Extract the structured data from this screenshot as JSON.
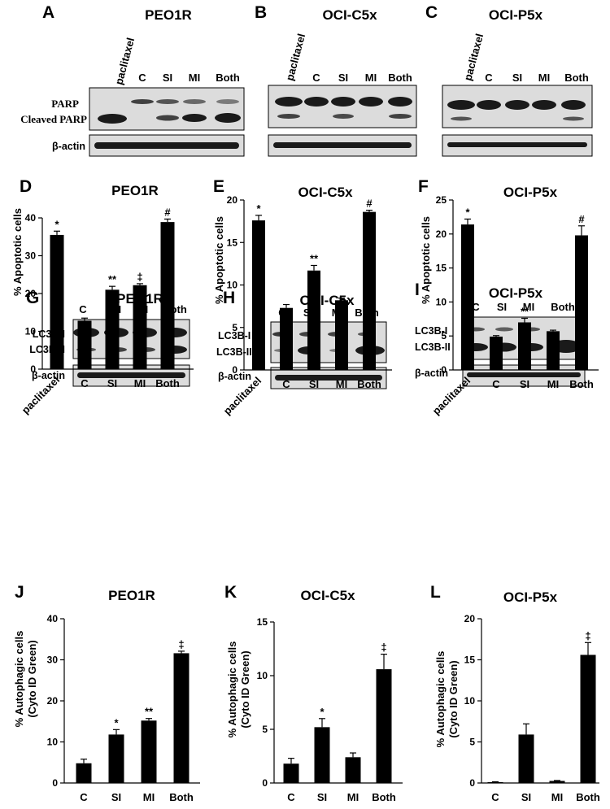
{
  "colors": {
    "bar": "#000000",
    "blot_bg": "#dcdcdc",
    "band": "#1a1a1a",
    "axis": "#000000"
  },
  "row1": {
    "panels": [
      {
        "letter": "A",
        "title": "PEO1R",
        "lanes": [
          "paclitaxel",
          "C",
          "SI",
          "MI",
          "Both"
        ],
        "band_labels": [
          "PARP",
          "Cleaved PARP"
        ],
        "loading_label": "β-actin"
      },
      {
        "letter": "B",
        "title": "OCI-C5x",
        "lanes": [
          "paclitaxel",
          "C",
          "SI",
          "MI",
          "Both"
        ],
        "loading_label": ""
      },
      {
        "letter": "C",
        "title": "OCI-P5x",
        "lanes": [
          "paclitaxel",
          "C",
          "SI",
          "MI",
          "Both"
        ],
        "loading_label": ""
      }
    ]
  },
  "row3": {
    "panels": [
      {
        "letter": "G",
        "title": "PEO1R",
        "lanes": [
          "C",
          "SI",
          "MI",
          "Both"
        ],
        "band_labels": [
          "LC3B-I",
          "LC3B-II"
        ],
        "loading_label": "β-actin"
      },
      {
        "letter": "H",
        "title": "OCI-C5x",
        "lanes": [
          "C",
          "SI",
          "MI",
          "Both"
        ],
        "band_labels": [
          "LC3B-I",
          "LC3B-II"
        ],
        "loading_label": "β-actin"
      },
      {
        "letter": "I",
        "title": "OCI-P5x",
        "lanes": [
          "C",
          "SI",
          "MI",
          "Both"
        ],
        "band_labels": [
          "LC3B-I",
          "LC3B-II"
        ],
        "loading_label": "β-actin"
      }
    ]
  },
  "chart_data": [
    {
      "letter": "D",
      "type": "bar",
      "title": "PEO1R",
      "ylabel": "% Apoptotic cells",
      "categories": [
        "paclitaxel",
        "C",
        "SI",
        "MI",
        "Both"
      ],
      "values": [
        35.5,
        12.8,
        21.0,
        22.2,
        38.9
      ],
      "errors": [
        1.0,
        0.7,
        0.9,
        0.4,
        0.8
      ],
      "significance": [
        "*",
        "",
        "**",
        "‡",
        "#"
      ],
      "ylim": [
        0,
        40
      ],
      "yticks": [
        "0",
        "10",
        "20",
        "30",
        "40"
      ]
    },
    {
      "letter": "E",
      "type": "bar",
      "title": "OCI-C5x",
      "ylabel": "% Apoptotic cells",
      "categories": [
        "paclitaxel",
        "C",
        "SI",
        "MI",
        "Both"
      ],
      "values": [
        17.6,
        7.3,
        11.7,
        8.2,
        18.6
      ],
      "errors": [
        0.6,
        0.4,
        0.6,
        0.25,
        0.2
      ],
      "significance": [
        "*",
        "",
        "**",
        "",
        "#"
      ],
      "ylim": [
        0,
        20
      ],
      "yticks": [
        "0",
        "5",
        "10",
        "15",
        "20"
      ]
    },
    {
      "letter": "F",
      "type": "bar",
      "title": "OCI-P5x",
      "ylabel": "% Apoptotic cells",
      "categories": [
        "paclitaxel",
        "C",
        "SI",
        "MI",
        "Both"
      ],
      "values": [
        21.4,
        4.9,
        7.0,
        5.7,
        19.8
      ],
      "errors": [
        0.8,
        0.15,
        0.6,
        0.15,
        1.4
      ],
      "significance": [
        "*",
        "",
        "**",
        "",
        "#"
      ],
      "ylim": [
        0,
        25
      ],
      "yticks": [
        "0",
        "5",
        "10",
        "15",
        "20",
        "25"
      ]
    },
    {
      "letter": "J",
      "type": "bar",
      "title": "PEO1R",
      "ylabel": "% Autophagic cells",
      "ylabel2": "(Cyto ID Green)",
      "categories": [
        "C",
        "SI",
        "MI",
        "Both"
      ],
      "values": [
        4.8,
        11.8,
        15.2,
        31.6
      ],
      "errors": [
        1.0,
        1.2,
        0.5,
        0.5
      ],
      "significance": [
        "",
        "*",
        "**",
        "‡"
      ],
      "ylim": [
        0,
        40
      ],
      "yticks": [
        "0",
        "10",
        "20",
        "30",
        "40"
      ]
    },
    {
      "letter": "K",
      "type": "bar",
      "title": "OCI-C5x",
      "ylabel": "% Autophagic cells",
      "ylabel2": "(Cyto ID Green)",
      "categories": [
        "C",
        "SI",
        "MI",
        "Both"
      ],
      "values": [
        1.8,
        5.2,
        2.4,
        10.6
      ],
      "errors": [
        0.5,
        0.8,
        0.4,
        1.4
      ],
      "significance": [
        "",
        "*",
        "",
        "‡"
      ],
      "ylim": [
        0,
        15
      ],
      "yticks": [
        "0",
        "5",
        "10",
        "15"
      ]
    },
    {
      "letter": "L",
      "type": "bar",
      "title": "OCI-P5x",
      "ylabel": "% Autophagic cells",
      "ylabel2": "(Cyto ID Green)",
      "categories": [
        "C",
        "SI",
        "MI",
        "Both"
      ],
      "values": [
        0.1,
        5.9,
        0.25,
        15.6
      ],
      "errors": [
        0.05,
        1.3,
        0.05,
        1.5
      ],
      "significance": [
        "",
        "",
        "",
        "‡"
      ],
      "ylim": [
        0,
        20
      ],
      "yticks": [
        "0",
        "5",
        "10",
        "15",
        "20"
      ]
    }
  ]
}
